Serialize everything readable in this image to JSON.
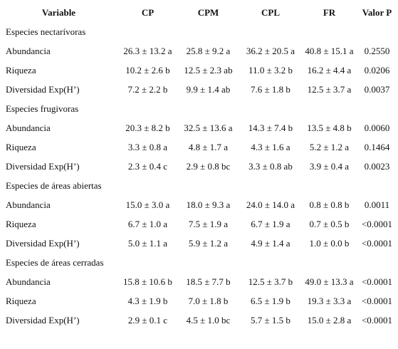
{
  "table": {
    "header": [
      "Variable",
      "CP",
      "CPM",
      "CPL",
      "FR",
      "Valor P"
    ],
    "groups": [
      {
        "title": "Especies nectarívoras",
        "rows": [
          [
            "Abundancia",
            "26.3 ± 13.2 a",
            "25.8 ± 9.2 a",
            "36.2 ± 20.5 a",
            "40.8 ± 15.1 a",
            "0.2550"
          ],
          [
            "Riqueza",
            "10.2 ± 2.6 b",
            "12.5 ± 2.3 ab",
            "11.0 ± 3.2 b",
            "16.2 ± 4.4 a",
            "0.0206"
          ],
          [
            "Diversidad Exp(H’)",
            "7.2 ± 2.2 b",
            "9.9 ± 1.4 ab",
            "7.6 ± 1.8 b",
            "12.5 ± 3.7 a",
            "0.0037"
          ]
        ]
      },
      {
        "title": "Especies frugivoras",
        "rows": [
          [
            "Abundancia",
            "20.3 ± 8.2 b",
            "32.5 ± 13.6 a",
            "14.3 ± 7.4 b",
            "13.5 ± 4.8 b",
            "0.0060"
          ],
          [
            "Riqueza",
            "3.3 ± 0.8 a",
            "4.8 ± 1.7 a",
            "4.3 ± 1.6 a",
            "5.2 ± 1.2 a",
            "0.1464"
          ],
          [
            "Diversidad Exp(H’)",
            "2.3 ± 0.4 c",
            "2.9 ± 0.8 bc",
            "3.3 ± 0.8 ab",
            "3.9 ± 0.4 a",
            "0.0023"
          ]
        ]
      },
      {
        "title": "Especies de áreas abiertas",
        "rows": [
          [
            "Abundancia",
            "15.0 ± 3.0 a",
            "18.0 ± 9.3 a",
            "24.0 ± 14.0 a",
            "0.8 ± 0.8 b",
            "0.0011"
          ],
          [
            "Riqueza",
            "6.7 ± 1.0 a",
            "7.5 ± 1.9 a",
            "6.7 ± 1.9 a",
            "0.7 ± 0.5 b",
            "<0.0001"
          ],
          [
            "Diversidad Exp(H’)",
            "5.0 ± 1.1 a",
            "5.9 ± 1.2 a",
            "4.9 ± 1.4 a",
            "1.0 ± 0.0 b",
            "<0.0001"
          ]
        ]
      },
      {
        "title": "Especies de áreas cerradas",
        "rows": [
          [
            "Abundancia",
            "15.8 ± 10.6 b",
            "18.5 ± 7.7 b",
            "12.5 ± 3.7 b",
            "49.0 ± 13.3 a",
            "<0.0001"
          ],
          [
            "Riqueza",
            "4.3 ± 1.9 b",
            "7.0 ± 1.8 b",
            "6.5 ± 1.9 b",
            "19.3 ± 3.3 a",
            "<0.0001"
          ],
          [
            "Diversidad Exp(H’)",
            "2.9 ± 0.1 c",
            "4.5 ± 1.0 bc",
            "5.7 ± 1.5 b",
            "15.0 ± 2.8 a",
            "<0.0001"
          ]
        ]
      }
    ]
  }
}
